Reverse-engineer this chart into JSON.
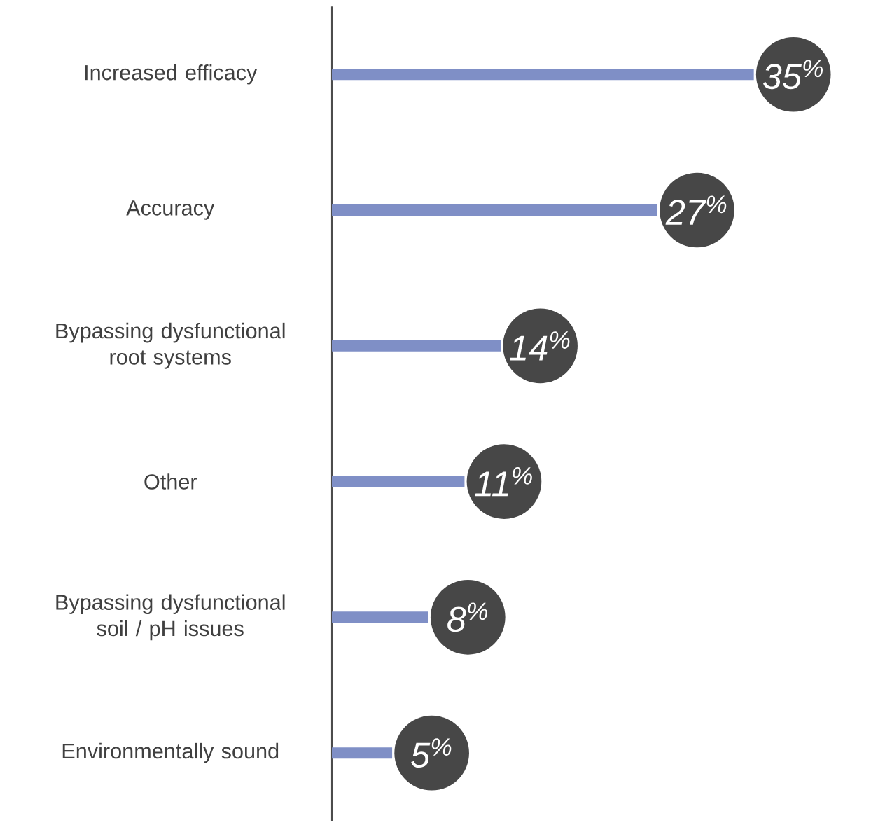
{
  "chart_data": {
    "type": "bar",
    "orientation": "horizontal",
    "categories": [
      "Increased efficacy",
      "Accuracy",
      "Bypassing dysfunctional root systems",
      "Other",
      "Bypassing dysfunctional soil / pH issues",
      "Environmentally sound"
    ],
    "values": [
      35,
      27,
      14,
      11,
      8,
      5
    ],
    "value_labels": [
      "35$^{%}$",
      "27$^{%}$",
      "14$^{%}$",
      "11$^{%}$",
      "8$^{%}$",
      "5$^{%}$"
    ],
    "color": "#7f8fc6",
    "tick_labels": "y",
    "grid": false
  }
}
